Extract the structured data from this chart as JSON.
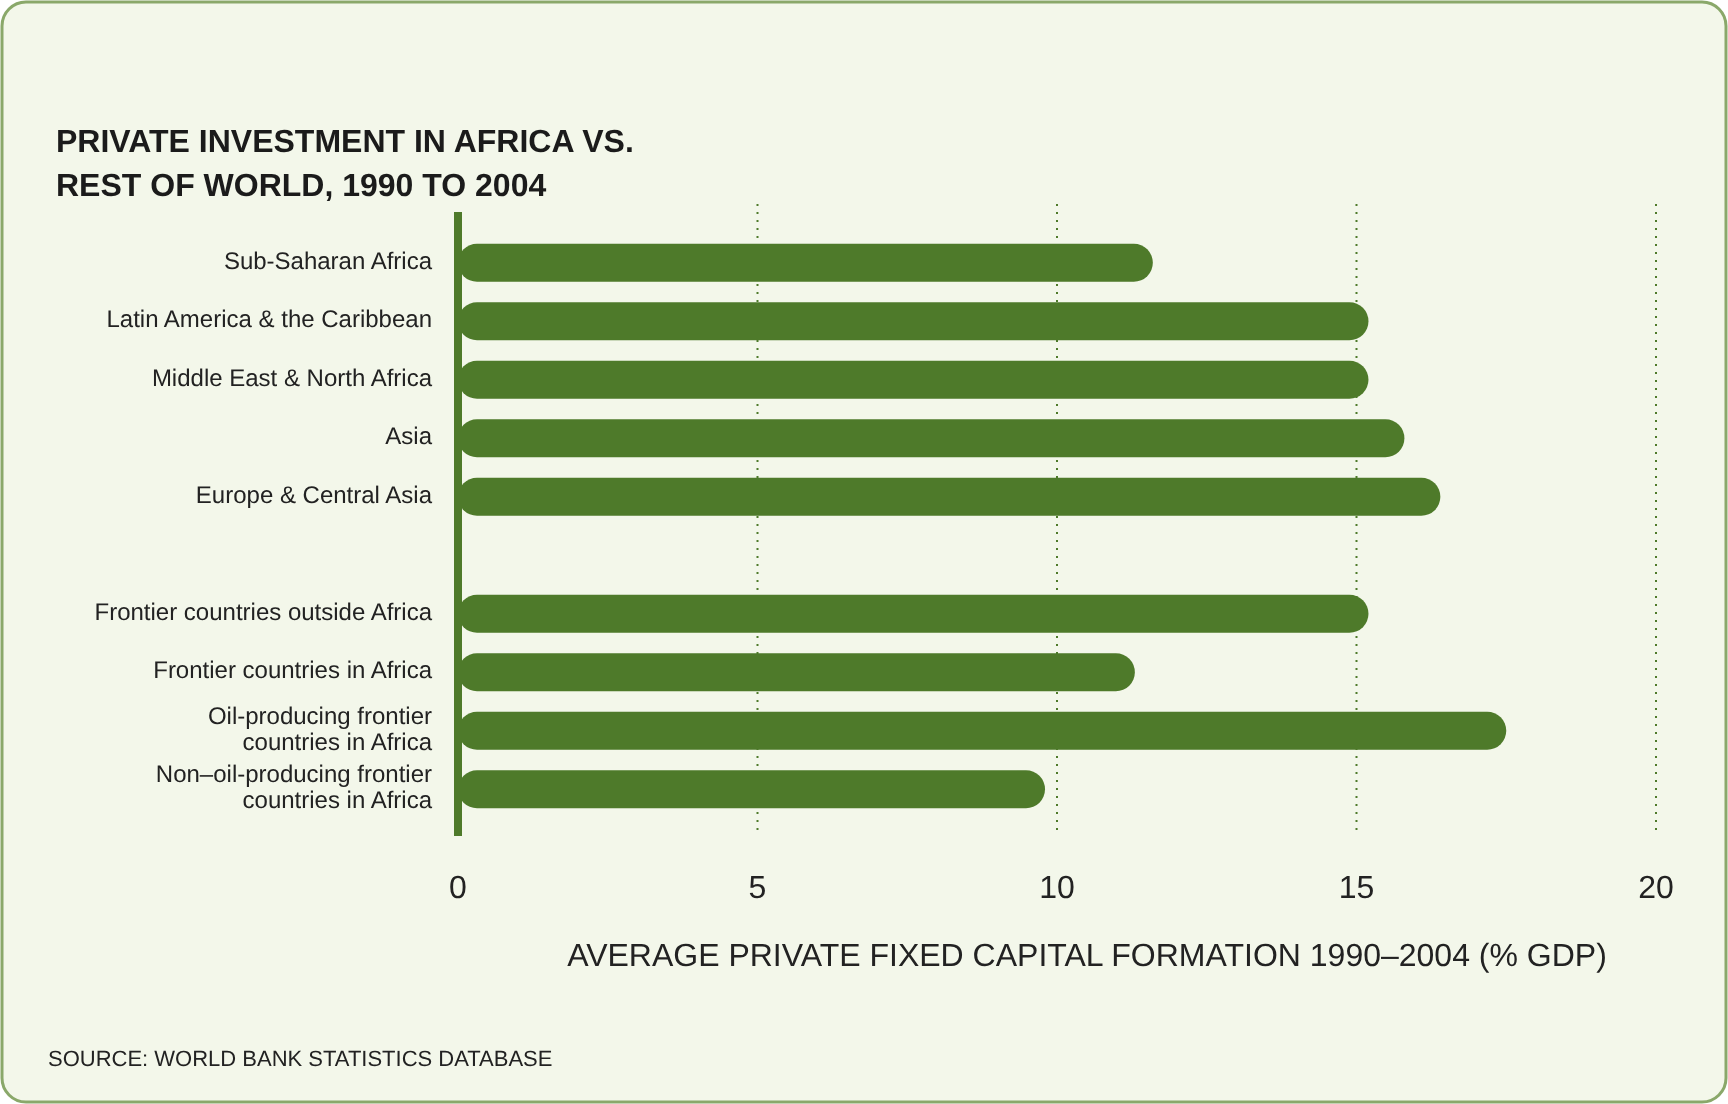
{
  "chart_data": {
    "type": "bar",
    "orientation": "horizontal",
    "title": "PRIVATE INVESTMENT IN AFRICA VS.\nREST OF WORLD, 1990 TO 2004",
    "xlabel": "AVERAGE PRIVATE FIXED CAPITAL FORMATION 1990–2004 (% GDP)",
    "categories": [
      "Sub-Saharan Africa",
      "Latin America & the Caribbean",
      "Middle East & North Africa",
      "Asia",
      "Europe & Central Asia",
      null,
      "Frontier countries outside Africa",
      "Frontier countries in Africa",
      "Oil-producing frontier countries in Africa",
      "Non–oil-producing frontier countries in Africa"
    ],
    "values": [
      11.6,
      15.2,
      15.2,
      15.8,
      16.4,
      null,
      15.2,
      11.3,
      17.5,
      9.8
    ],
    "color": "#4e7a2a",
    "xlim": [
      0,
      20
    ],
    "xticks": [
      0,
      5,
      10,
      15,
      20
    ],
    "grid": "x",
    "annotations": [
      "SOURCE: WORLD BANK STATISTICS DATABASE"
    ]
  }
}
